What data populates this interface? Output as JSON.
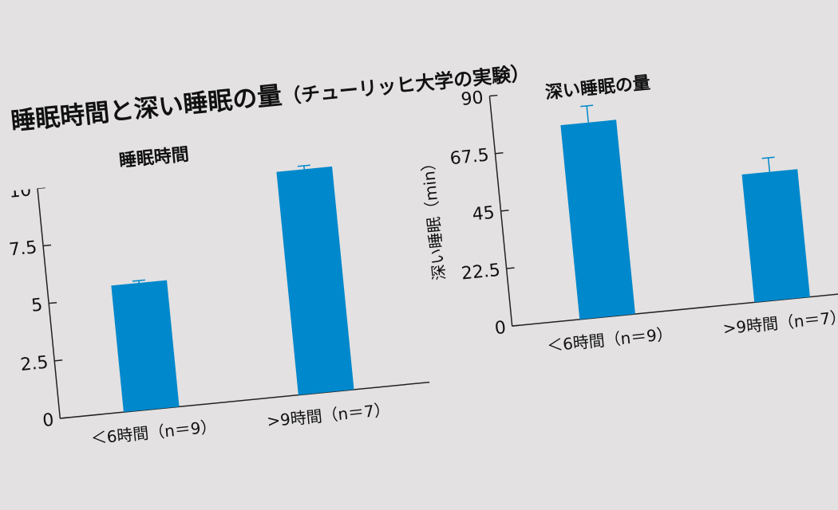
{
  "title": {
    "main": "睡眠時間と深い睡眠の量",
    "subtitle": "（チューリッヒ大学の実験）"
  },
  "colors": {
    "bar": "#0088cc",
    "axis": "#222222",
    "background": "#e3e1e1"
  },
  "chart_data": [
    {
      "type": "bar",
      "title": "睡眠時間",
      "categories": [
        "＜6時間（n＝9）",
        ">9時間（n＝7）"
      ],
      "values": [
        5.5,
        9.7
      ],
      "error_bars": [
        0.1,
        0.15
      ],
      "xlabel": "",
      "ylabel": "",
      "yticks": [
        "0",
        "2.5",
        "5",
        "7.5",
        "10"
      ],
      "ylim": [
        0,
        10
      ],
      "grid": false
    },
    {
      "type": "bar",
      "title": "深い睡眠の量",
      "categories": [
        "＜6時間（n＝9）",
        ">9時間（n＝7）"
      ],
      "values": [
        76,
        50
      ],
      "error_bars": [
        6.5,
        5.5
      ],
      "xlabel": "",
      "ylabel": "深い睡眠（min）",
      "yticks": [
        "0",
        "22.5",
        "45",
        "67.5",
        "90"
      ],
      "ylim": [
        0,
        90
      ],
      "grid": false
    }
  ]
}
